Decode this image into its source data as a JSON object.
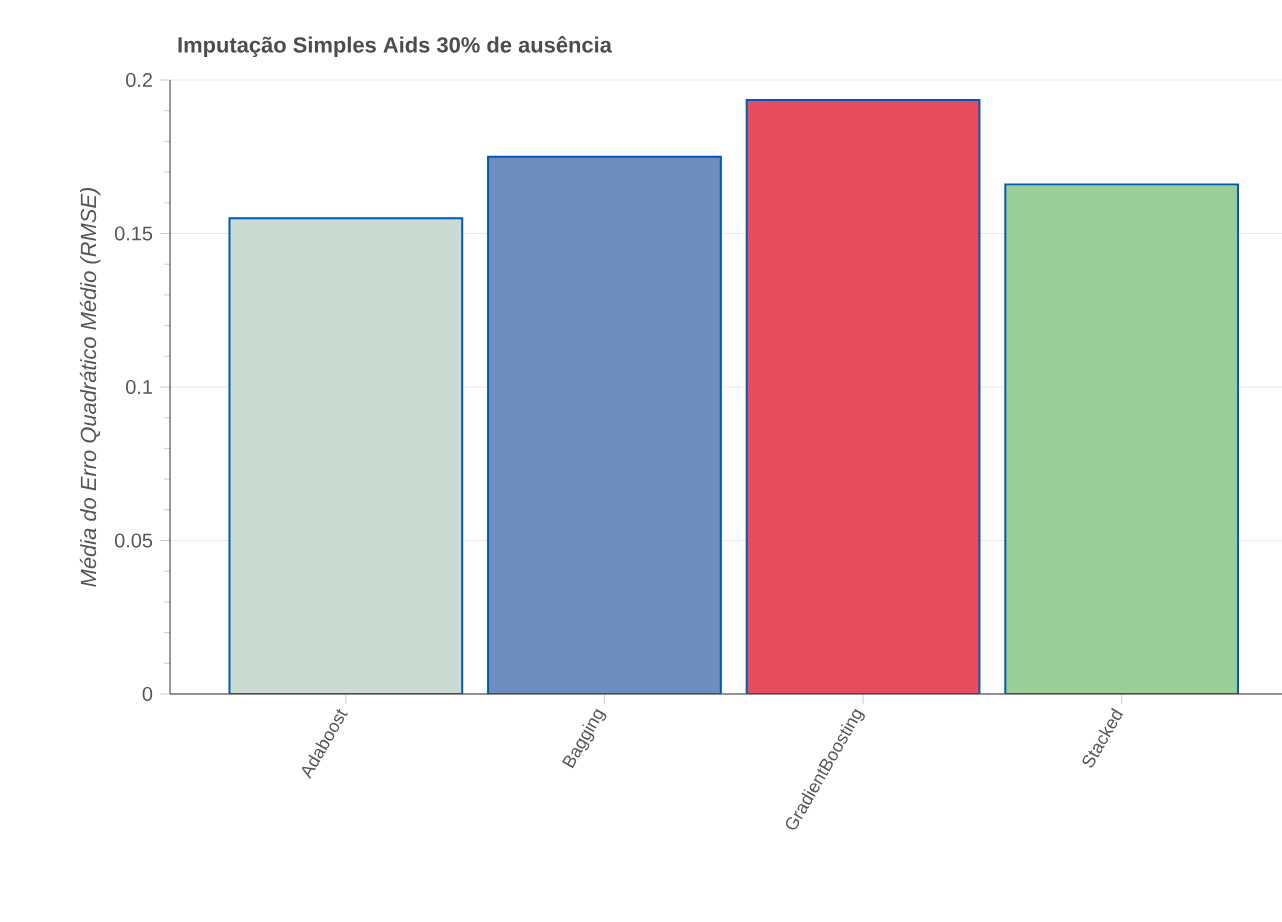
{
  "chart_data": {
    "type": "bar",
    "title": "Imputação Simples Aids 30% de ausência",
    "ylabel": "Média do Erro Quadrático Médio (RMSE)",
    "categories": [
      "Adaboost",
      "Bagging",
      "GradientBoosting",
      "Stacked"
    ],
    "values": [
      0.155,
      0.175,
      0.1935,
      0.166
    ],
    "colors": [
      "#c9dbd3",
      "#6f8dbf",
      "#e84c5f",
      "#9acd97"
    ],
    "ylim": [
      0,
      0.2
    ],
    "yticks": [
      0,
      0.05,
      0.1,
      0.15,
      0.2
    ],
    "grid": "y"
  }
}
